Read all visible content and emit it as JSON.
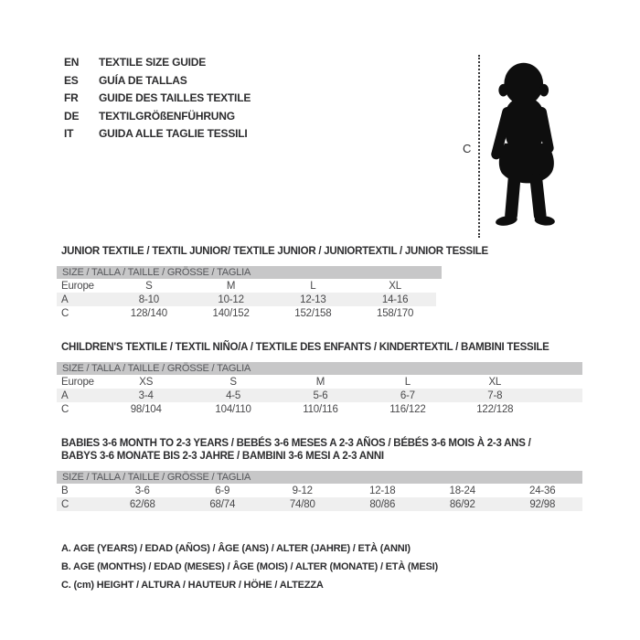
{
  "colors": {
    "background": "#ffffff",
    "table_header_bar": "#c7c7c8",
    "row_alternate": "#efefef",
    "text": "#48484a",
    "silhouette": "#0e0e0e"
  },
  "languages": [
    {
      "code": "EN",
      "text": "TEXTILE SIZE GUIDE"
    },
    {
      "code": "ES",
      "text": "GUÍA DE TALLAS"
    },
    {
      "code": "FR",
      "text": "GUIDE DES TAILLES TEXTILE"
    },
    {
      "code": "DE",
      "text": "TEXTILGRÖßENFÜHRUNG"
    },
    {
      "code": "IT",
      "text": "GUIDA ALLE TAGLIE TESSILI"
    }
  ],
  "figure": {
    "height_label": "C"
  },
  "sections": [
    {
      "title": "JUNIOR TEXTILE / TEXTIL JUNIOR/ TEXTILE JUNIOR / JUNIORTEXTIL / JUNIOR TESSILE",
      "size_header": "SIZE / TALLA / TAILLE / GRÖSSE / TAGLIA",
      "rows": [
        {
          "label": "Europe",
          "values": [
            "S",
            "M",
            "L",
            "XL"
          ]
        },
        {
          "label": "A",
          "values": [
            "8-10",
            "10-12",
            "12-13",
            "14-16"
          ]
        },
        {
          "label": "C",
          "values": [
            "128/140",
            "140/152",
            "152/158",
            "158/170"
          ]
        }
      ]
    },
    {
      "title": "CHILDREN'S TEXTILE / TEXTIL NIÑO/A / TEXTILE DES ENFANTS / KINDERTEXTIL / BAMBINI TESSILE",
      "size_header": "SIZE / TALLA / TAILLE / GRÖSSE / TAGLIA",
      "rows": [
        {
          "label": "Europe",
          "values": [
            "XS",
            "S",
            "M",
            "L",
            "XL"
          ]
        },
        {
          "label": "A",
          "values": [
            "3-4",
            "4-5",
            "5-6",
            "6-7",
            "7-8"
          ]
        },
        {
          "label": "C",
          "values": [
            "98/104",
            "104/110",
            "110/116",
            "116/122",
            "122/128"
          ]
        }
      ]
    },
    {
      "title": "BABIES 3-6 MONTH TO 2-3 YEARS / BEBÉS 3-6 MESES A 2-3 AÑOS / BÉBÉS 3-6 MOIS À 2-3 ANS / BABYS 3-6 MONATE BIS 2-3 JAHRE / BAMBINI 3-6 MESI A 2-3 ANNI",
      "size_header": "SIZE / TALLA / TAILLE / GRÖSSE / TAGLIA",
      "rows": [
        {
          "label": "B",
          "values": [
            "3-6",
            "6-9",
            "9-12",
            "12-18",
            "18-24",
            "24-36"
          ]
        },
        {
          "label": "C",
          "values": [
            "62/68",
            "68/74",
            "74/80",
            "80/86",
            "86/92",
            "92/98"
          ]
        }
      ]
    }
  ],
  "notes": [
    "A. AGE (YEARS) / EDAD (AÑOS) / ÂGE (ANS) / ALTER (JAHRE) / ETÀ (ANNI)",
    "B. AGE (MONTHS) / EDAD (MESES) / ÂGE (MOIS) / ALTER (MONATE) / ETÀ (MESI)",
    "C. (cm) HEIGHT / ALTURA / HAUTEUR / HÖHE / ALTEZZA"
  ]
}
